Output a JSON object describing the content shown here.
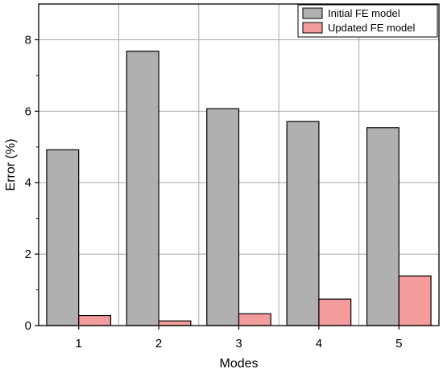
{
  "chart_data": {
    "type": "bar",
    "title": "",
    "xlabel": "Modes",
    "ylabel": "Error (%)",
    "categories": [
      "1",
      "2",
      "3",
      "4",
      "5"
    ],
    "ylim": [
      0,
      9
    ],
    "yticks": [
      0,
      2,
      4,
      6,
      8
    ],
    "grid": true,
    "legend_position": "top-right",
    "series": [
      {
        "name": "Initial FE model",
        "color": "#b0b0b0",
        "values": [
          4.92,
          7.68,
          6.07,
          5.71,
          5.54
        ]
      },
      {
        "name": "Updated FE model",
        "color": "#f49c9c",
        "values": [
          0.28,
          0.13,
          0.33,
          0.74,
          1.39
        ]
      }
    ]
  }
}
